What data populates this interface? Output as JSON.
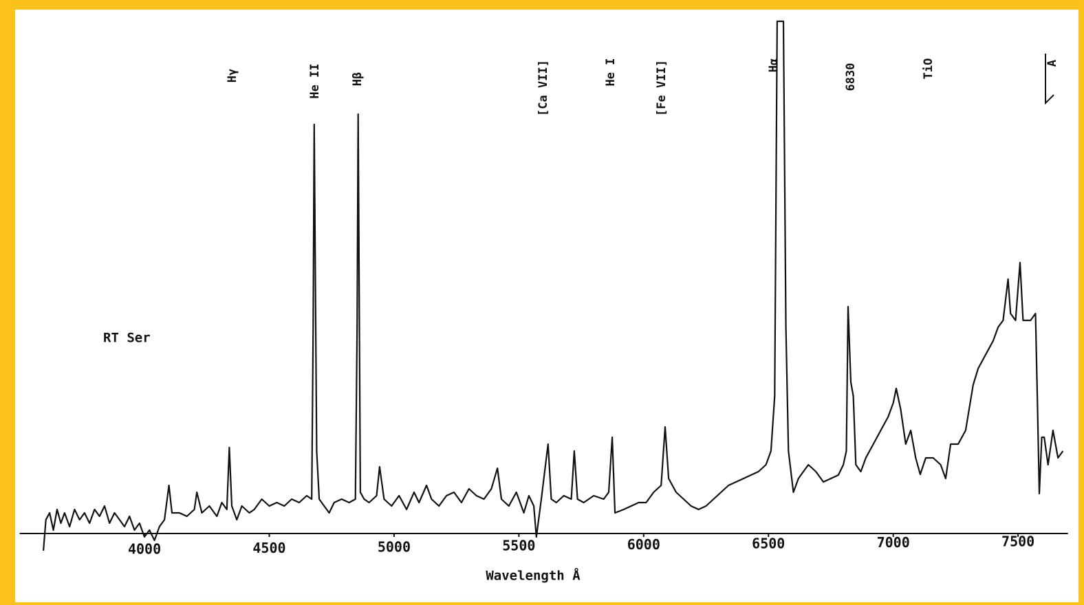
{
  "chart_data": {
    "type": "line",
    "xlabel": "Wavelength Å",
    "object_label": "RT Ser",
    "line_labels": [
      "Hγ",
      "He II",
      "Hβ",
      "[Ca VII]",
      "He I",
      "[Fe VII]",
      "Hα",
      "6830",
      "TiO",
      "A"
    ],
    "xlim": [
      3500,
      7700
    ],
    "xticks": [
      4000,
      4500,
      5000,
      5500,
      6000,
      6500,
      7000,
      7500
    ],
    "ylim": [
      -100,
      750
    ],
    "color": "#111111",
    "x": [
      3595,
      3605,
      3620,
      3635,
      3650,
      3665,
      3680,
      3700,
      3720,
      3740,
      3760,
      3780,
      3800,
      3820,
      3840,
      3860,
      3880,
      3900,
      3920,
      3940,
      3960,
      3980,
      4000,
      4020,
      4040,
      4060,
      4080,
      4098,
      4110,
      4140,
      4170,
      4200,
      4210,
      4230,
      4260,
      4290,
      4310,
      4330,
      4340,
      4350,
      4370,
      4390,
      4420,
      4440,
      4470,
      4500,
      4530,
      4560,
      4590,
      4620,
      4650,
      4670,
      4676,
      4680,
      4690,
      4700,
      4720,
      4740,
      4760,
      4790,
      4820,
      4845,
      4852,
      4856,
      4865,
      4880,
      4900,
      4930,
      4942,
      4960,
      4990,
      5020,
      5050,
      5080,
      5100,
      5130,
      5150,
      5180,
      5210,
      5240,
      5270,
      5300,
      5330,
      5360,
      5390,
      5414,
      5430,
      5460,
      5490,
      5520,
      5540,
      5560,
      5570,
      5590,
      5617,
      5630,
      5650,
      5680,
      5710,
      5722,
      5735,
      5760,
      5800,
      5840,
      5860,
      5874,
      5885,
      5920,
      5950,
      5980,
      6010,
      6040,
      6070,
      6086,
      6100,
      6130,
      6160,
      6190,
      6220,
      6250,
      6280,
      6310,
      6340,
      6370,
      6400,
      6430,
      6460,
      6490,
      6510,
      6525,
      6535,
      6545,
      6560,
      6570,
      6580,
      6600,
      6620,
      6640,
      6660,
      6690,
      6720,
      6750,
      6780,
      6800,
      6812,
      6819,
      6830,
      6840,
      6850,
      6870,
      6890,
      6920,
      6950,
      6980,
      7000,
      7012,
      7030,
      7050,
      7070,
      7090,
      7108,
      7130,
      7160,
      7190,
      7210,
      7230,
      7260,
      7290,
      7320,
      7340,
      7370,
      7400,
      7420,
      7440,
      7460,
      7470,
      7490,
      7508,
      7520,
      7550,
      7570,
      7577,
      7585,
      7595,
      7605,
      7620,
      7640,
      7660,
      7680
    ],
    "values": [
      -25,
      20,
      30,
      5,
      35,
      15,
      30,
      10,
      35,
      20,
      30,
      15,
      35,
      25,
      40,
      15,
      30,
      20,
      10,
      25,
      5,
      15,
      -5,
      5,
      -10,
      10,
      20,
      70,
      30,
      30,
      25,
      35,
      60,
      30,
      40,
      25,
      45,
      35,
      125,
      40,
      20,
      40,
      30,
      35,
      50,
      40,
      45,
      40,
      50,
      45,
      55,
      50,
      300,
      595,
      120,
      50,
      40,
      30,
      45,
      50,
      45,
      50,
      300,
      610,
      60,
      50,
      45,
      55,
      97,
      50,
      40,
      55,
      35,
      60,
      45,
      70,
      50,
      40,
      55,
      60,
      45,
      65,
      55,
      50,
      65,
      95,
      50,
      40,
      60,
      30,
      55,
      40,
      -5,
      50,
      130,
      50,
      45,
      55,
      50,
      120,
      50,
      45,
      55,
      50,
      60,
      140,
      30,
      35,
      40,
      45,
      45,
      60,
      70,
      155,
      80,
      60,
      50,
      40,
      35,
      40,
      50,
      60,
      70,
      75,
      80,
      85,
      90,
      100,
      120,
      200,
      745,
      745,
      745,
      300,
      120,
      60,
      80,
      90,
      100,
      90,
      75,
      80,
      85,
      100,
      120,
      330,
      220,
      200,
      100,
      90,
      110,
      130,
      150,
      170,
      190,
      211,
      180,
      130,
      150,
      110,
      86,
      110,
      110,
      100,
      80,
      130,
      130,
      150,
      216,
      240,
      260,
      280,
      300,
      310,
      370,
      320,
      310,
      394,
      310,
      310,
      320,
      200,
      58,
      140,
      140,
      100,
      150,
      110,
      120
    ]
  }
}
